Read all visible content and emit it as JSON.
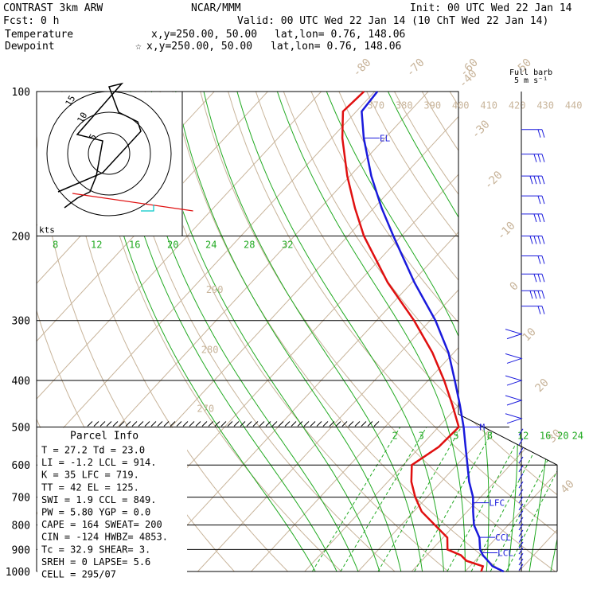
{
  "header": {
    "title": "CONTRAST   3km ARW",
    "fcst": "Fcst:    0 h",
    "center": "NCAR/MMM",
    "init": "Init: 00 UTC Wed 22 Jan 14",
    "valid": "Valid: 00 UTC Wed 22 Jan 14 (10 ChT Wed 22 Jan 14)",
    "temp_name": "Temperature",
    "temp_xy": "x,y=250.00, 50.00",
    "temp_latlon": "lat,lon=  0.76, 148.06",
    "dew_name": "Dewpoint",
    "dew_xy": "x,y=250.00, 50.00",
    "dew_latlon": "lat,lon=  0.76, 148.06",
    "dew_star": "☆"
  },
  "colors": {
    "temperature": "#1a1adc",
    "dewpoint": "#e01010",
    "theta": "#c8b49a",
    "moist": "#22aa22",
    "grid": "#000000",
    "hodo_cyan": "#00c8c8"
  },
  "barb_legend": {
    "line1": "Full barb",
    "line2": "5 m s⁻¹"
  },
  "hodograph": {
    "kts_label": "kts",
    "ring_labels": [
      "5",
      "10",
      "15"
    ]
  },
  "chart_data": {
    "type": "skew-t",
    "title": "CONTRAST 3km ARW",
    "pressure_levels": [
      100,
      200,
      300,
      400,
      500,
      600,
      700,
      800,
      900,
      1000
    ],
    "pressure_labels": [
      "100",
      "200",
      "300",
      "400",
      "500",
      "600",
      "700",
      "800",
      "900",
      "1000"
    ],
    "temperature_profile": [
      [
        1000,
        27.2
      ],
      [
        975,
        24.2
      ],
      [
        950,
        22.4
      ],
      [
        925,
        20.5
      ],
      [
        900,
        19.0
      ],
      [
        850,
        16.8
      ],
      [
        800,
        13.6
      ],
      [
        750,
        11.1
      ],
      [
        700,
        8.6
      ],
      [
        650,
        5.2
      ],
      [
        600,
        2.0
      ],
      [
        550,
        -1.5
      ],
      [
        500,
        -5.3
      ],
      [
        450,
        -9.8
      ],
      [
        400,
        -15.0
      ],
      [
        350,
        -21.0
      ],
      [
        300,
        -29.0
      ],
      [
        250,
        -39.5
      ],
      [
        200,
        -51.5
      ],
      [
        175,
        -58.5
      ],
      [
        150,
        -66.0
      ],
      [
        125,
        -74.0
      ],
      [
        110,
        -79.0
      ],
      [
        100,
        -79.5
      ]
    ],
    "dewpoint_profile": [
      [
        1000,
        23.0
      ],
      [
        975,
        22.4
      ],
      [
        950,
        18.4
      ],
      [
        925,
        16.4
      ],
      [
        900,
        12.9
      ],
      [
        850,
        10.8
      ],
      [
        800,
        6.3
      ],
      [
        750,
        1.5
      ],
      [
        700,
        -2.2
      ],
      [
        650,
        -5.6
      ],
      [
        600,
        -8.4
      ],
      [
        550,
        -6.5
      ],
      [
        500,
        -6.2
      ],
      [
        450,
        -11.2
      ],
      [
        400,
        -17.0
      ],
      [
        350,
        -24.0
      ],
      [
        300,
        -33.0
      ],
      [
        250,
        -44.5
      ],
      [
        200,
        -57.0
      ],
      [
        175,
        -63.5
      ],
      [
        150,
        -70.5
      ],
      [
        125,
        -78.0
      ],
      [
        110,
        -82.5
      ],
      [
        100,
        -82.0
      ]
    ],
    "isotherm_labels": [
      "-80",
      "-70",
      "-60",
      "-50",
      "-40",
      "-30",
      "-20",
      "-10",
      "0",
      "10",
      "20",
      "30",
      "40"
    ],
    "isotherm_values": [
      -80,
      -70,
      -60,
      -50,
      -40,
      -30,
      -20,
      -10,
      0,
      10,
      20,
      30,
      40
    ],
    "theta_labels": [
      "370",
      "380",
      "390",
      "400",
      "410",
      "420",
      "430",
      "440",
      "290",
      "280",
      "270"
    ],
    "theta_values": [
      370,
      380,
      390,
      400,
      410,
      420,
      430,
      440,
      290,
      280,
      270
    ],
    "theta_label_pressure": [
      107,
      107,
      107,
      107,
      107,
      107,
      107,
      107,
      259,
      345,
      458
    ],
    "moist_labels_200": [
      "8",
      "12",
      "16",
      "20",
      "24",
      "28",
      "32"
    ],
    "moist_values_200": [
      8,
      12,
      16,
      20,
      24,
      28,
      32
    ],
    "mixing_ratio_labels": [
      "2",
      "3",
      "5",
      "8",
      "12",
      "16",
      "20",
      "24"
    ],
    "mixing_ratio_values": [
      2,
      3,
      5,
      8,
      12,
      16,
      20,
      24
    ],
    "level_markers": [
      {
        "name": "EL",
        "pressure": 125
      },
      {
        "name": "M",
        "pressure": 500
      },
      {
        "name": "LFC",
        "pressure": 719
      },
      {
        "name": "CCL",
        "pressure": 849
      },
      {
        "name": "LCL",
        "pressure": 914
      }
    ],
    "hodograph_points_kts": [
      [
        -16,
        12
      ],
      [
        -2,
        6
      ],
      [
        10,
        -7
      ],
      [
        9,
        -10
      ],
      [
        3,
        -13
      ],
      [
        0,
        -21
      ],
      [
        4,
        -22
      ],
      [
        -10,
        -6
      ],
      [
        -2,
        -4
      ],
      [
        -4,
        7
      ],
      [
        -6,
        12
      ],
      [
        -10,
        14
      ],
      [
        -14,
        17
      ]
    ],
    "hodograph_storm_motion": [
      8,
      -17
    ]
  },
  "parcel_info": {
    "title": "Parcel Info",
    "rows": [
      "T   =   27.2  Td =  23.0",
      "LI  =   -1.2  LCL =  914.",
      "K   =     35  LFC =  719.",
      "TT  =     42  EL  =  125.",
      "SWI =    1.9  CCL =  849.",
      "PW  =   5.80  YGP =   0.0",
      "CAPE =   164  SWEAT=  200",
      "CIN =   -124  HWBZ= 4853.",
      "Tc  =   32.9  SHEAR=   3.",
      "SREH =     0  LAPSE=   5.6",
      "CELL = 295/07"
    ]
  }
}
